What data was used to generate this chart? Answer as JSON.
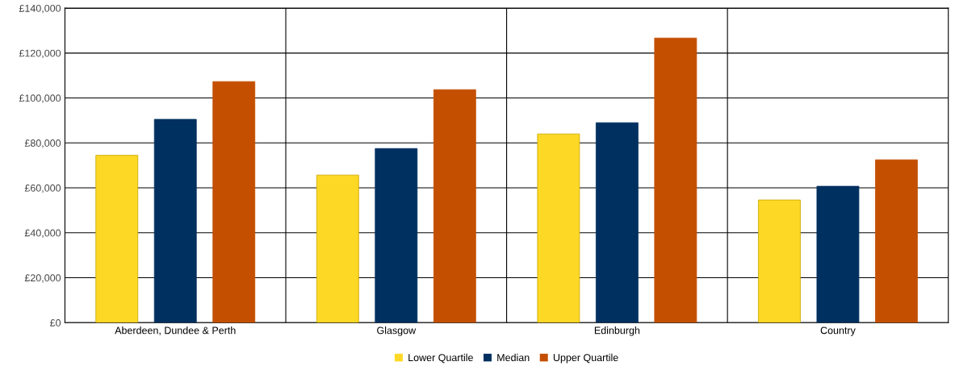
{
  "chart_data": {
    "type": "bar",
    "categories": [
      "Aberdeen, Dundee & Perth",
      "Glasgow",
      "Edinburgh",
      "Country"
    ],
    "series": [
      {
        "name": "Lower Quartile",
        "color": "#fdd825",
        "values": [
          74500,
          65700,
          84000,
          54600
        ]
      },
      {
        "name": "Median",
        "color": "#003060",
        "values": [
          90500,
          77500,
          89000,
          60700
        ]
      },
      {
        "name": "Upper Quartile",
        "color": "#c44f00",
        "values": [
          107300,
          103700,
          126700,
          72500
        ]
      }
    ],
    "ylim": [
      0,
      140000
    ],
    "yticks": [
      {
        "value": 0,
        "label": "£0"
      },
      {
        "value": 20000,
        "label": "£20,000"
      },
      {
        "value": 40000,
        "label": "£40,000"
      },
      {
        "value": 60000,
        "label": "£60,000"
      },
      {
        "value": 80000,
        "label": "£80,000"
      },
      {
        "value": 100000,
        "label": "£100,000"
      },
      {
        "value": 120000,
        "label": "£120,000"
      },
      {
        "value": 140000,
        "label": "£140,000"
      }
    ],
    "grid": true,
    "legend": "bottom"
  }
}
